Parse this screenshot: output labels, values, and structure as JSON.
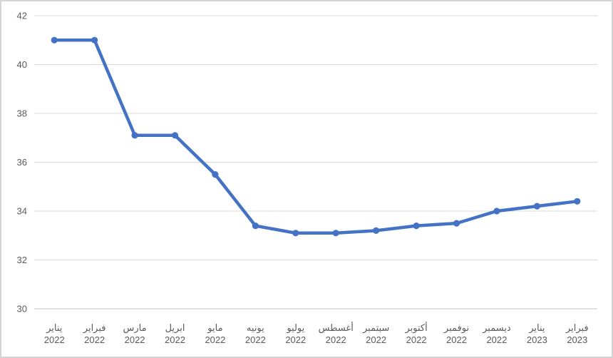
{
  "chart_data": {
    "type": "line",
    "title": "",
    "xlabel": "",
    "ylabel": "",
    "categories": [
      {
        "month": "يناير",
        "year": "2022"
      },
      {
        "month": "فبراير",
        "year": "2022"
      },
      {
        "month": "مارس",
        "year": "2022"
      },
      {
        "month": "ابريل",
        "year": "2022"
      },
      {
        "month": "مايو",
        "year": "2022"
      },
      {
        "month": "يونيه",
        "year": "2022"
      },
      {
        "month": "يوليو",
        "year": "2022"
      },
      {
        "month": "أغسطس",
        "year": "2022"
      },
      {
        "month": "سبتمبر",
        "year": "2022"
      },
      {
        "month": "أكتوبر",
        "year": "2022"
      },
      {
        "month": "نوفمبر",
        "year": "2022"
      },
      {
        "month": "ديسمبر",
        "year": "2022"
      },
      {
        "month": "يناير",
        "year": "2023"
      },
      {
        "month": "فبراير",
        "year": "2023"
      }
    ],
    "values": [
      41,
      41,
      37.1,
      37.1,
      35.5,
      33.4,
      33.1,
      33.1,
      33.2,
      33.4,
      33.5,
      34,
      34.2,
      34.4
    ],
    "ylim": [
      30,
      42
    ],
    "yticks": [
      30,
      32,
      34,
      36,
      38,
      40,
      42
    ],
    "grid": true,
    "legend_position": "none",
    "marker": "circle",
    "colors": {
      "series": "#4472C4",
      "gridline": "#D9D9D9",
      "axis_line": "#BFBFBF",
      "tick_label": "#595959",
      "background": "#FFFFFF",
      "frame_border": "#D4D4D4"
    }
  }
}
